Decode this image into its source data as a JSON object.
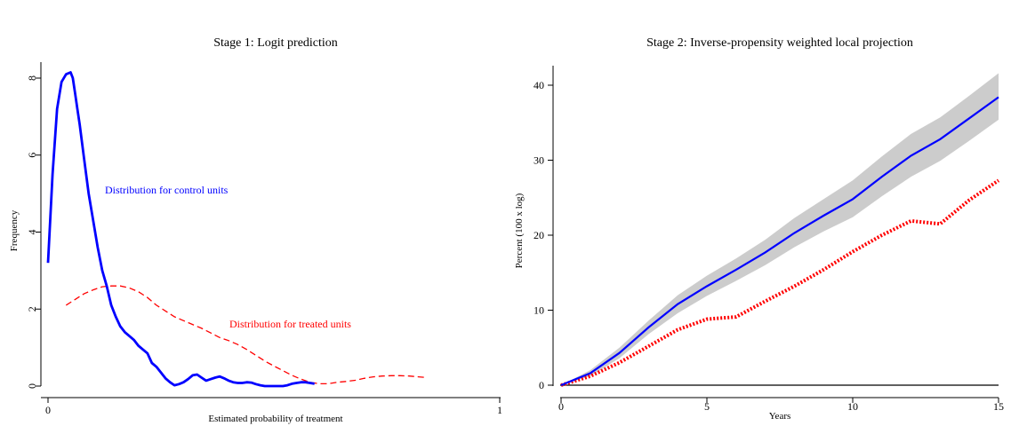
{
  "chart_data": [
    {
      "type": "line",
      "title": "Stage 1: Logit prediction",
      "xlabel": "Estimated probability of treatment",
      "ylabel": "Frequency",
      "xlim": [
        0,
        1
      ],
      "ylim": [
        0,
        8.2
      ],
      "xticks": [
        "0",
        "1"
      ],
      "yticks": [
        "0",
        "2",
        "4",
        "6",
        "8"
      ],
      "grid": false,
      "colors": {
        "control": "#0000ff",
        "treated": "#ff0000"
      },
      "annotations": [
        {
          "text": "Distribution for control units",
          "color": "#0000ff"
        },
        {
          "text": "Distribution for treated units",
          "color": "#ff0000"
        }
      ],
      "series": [
        {
          "style": "solid",
          "x": [
            0.0,
            0.01,
            0.02,
            0.03,
            0.04,
            0.05,
            0.055,
            0.06,
            0.065,
            0.07,
            0.08,
            0.09,
            0.1,
            0.11,
            0.12,
            0.13,
            0.14,
            0.15,
            0.16,
            0.17,
            0.18,
            0.19,
            0.2,
            0.21,
            0.22,
            0.23,
            0.24,
            0.25,
            0.26,
            0.27,
            0.28,
            0.29,
            0.3,
            0.31,
            0.32,
            0.33,
            0.34,
            0.35,
            0.36,
            0.37,
            0.38,
            0.39,
            0.4,
            0.41,
            0.42,
            0.43,
            0.44,
            0.45,
            0.46,
            0.47,
            0.48,
            0.49,
            0.5,
            0.51,
            0.52,
            0.53,
            0.54,
            0.55,
            0.56,
            0.57,
            0.58,
            0.59
          ],
          "y": [
            3.2,
            5.5,
            7.2,
            7.9,
            8.1,
            8.15,
            8.0,
            7.6,
            7.2,
            6.8,
            5.9,
            5.0,
            4.3,
            3.6,
            3.0,
            2.6,
            2.1,
            1.8,
            1.55,
            1.4,
            1.3,
            1.2,
            1.05,
            0.95,
            0.85,
            0.6,
            0.5,
            0.35,
            0.2,
            0.1,
            0.02,
            0.05,
            0.1,
            0.18,
            0.28,
            0.3,
            0.22,
            0.14,
            0.18,
            0.22,
            0.25,
            0.2,
            0.14,
            0.1,
            0.08,
            0.08,
            0.1,
            0.09,
            0.05,
            0.02,
            0.0,
            0.0,
            0.0,
            0.0,
            0.0,
            0.02,
            0.06,
            0.08,
            0.1,
            0.1,
            0.08,
            0.06
          ]
        },
        {
          "style": "dashed",
          "x": [
            0.04,
            0.06,
            0.08,
            0.1,
            0.12,
            0.14,
            0.16,
            0.18,
            0.2,
            0.22,
            0.24,
            0.26,
            0.28,
            0.3,
            0.32,
            0.34,
            0.36,
            0.38,
            0.4,
            0.42,
            0.44,
            0.46,
            0.48,
            0.5,
            0.52,
            0.54,
            0.56,
            0.58,
            0.6,
            0.62,
            0.64,
            0.66,
            0.68,
            0.7,
            0.72,
            0.74,
            0.76,
            0.78,
            0.8,
            0.82,
            0.84
          ],
          "y": [
            2.1,
            2.25,
            2.4,
            2.5,
            2.58,
            2.6,
            2.6,
            2.55,
            2.45,
            2.3,
            2.1,
            1.95,
            1.8,
            1.7,
            1.6,
            1.5,
            1.38,
            1.26,
            1.18,
            1.08,
            0.95,
            0.8,
            0.65,
            0.52,
            0.4,
            0.28,
            0.18,
            0.1,
            0.06,
            0.06,
            0.1,
            0.12,
            0.15,
            0.2,
            0.24,
            0.26,
            0.27,
            0.27,
            0.26,
            0.24,
            0.22
          ]
        }
      ]
    },
    {
      "type": "line",
      "title": "Stage 2: Inverse-propensity weighted local projection",
      "xlabel": "Years",
      "ylabel": "Percent (100 x log)",
      "xlim": [
        0,
        15
      ],
      "ylim": [
        0,
        42
      ],
      "xticks": [
        "0",
        "5",
        "10",
        "15"
      ],
      "yticks": [
        "0",
        "10",
        "20",
        "30",
        "40"
      ],
      "grid": false,
      "colors": {
        "estimate": "#0000ff",
        "band": "#cccccc",
        "comparison": "#ff0000"
      },
      "series": [
        {
          "style": "solid",
          "x": [
            0,
            1,
            2,
            3,
            4,
            5,
            6,
            7,
            8,
            9,
            10,
            11,
            12,
            13,
            14,
            15
          ],
          "y": [
            0,
            1.6,
            4.3,
            7.7,
            10.8,
            13.2,
            15.4,
            17.7,
            20.3,
            22.6,
            24.8,
            27.8,
            30.6,
            32.8,
            35.6,
            38.4
          ],
          "lower": [
            0,
            1.2,
            3.6,
            6.8,
            9.6,
            11.9,
            13.9,
            16.0,
            18.4,
            20.5,
            22.4,
            25.2,
            27.8,
            29.9,
            32.6,
            35.4
          ],
          "upper": [
            0,
            2.0,
            5.0,
            8.6,
            12.0,
            14.6,
            16.9,
            19.4,
            22.3,
            24.8,
            27.3,
            30.5,
            33.5,
            35.7,
            38.6,
            41.6
          ]
        },
        {
          "style": "dotted",
          "x": [
            0,
            1,
            2,
            3,
            4,
            5,
            6,
            7,
            8,
            9,
            10,
            11,
            12,
            13,
            14,
            15
          ],
          "y": [
            0,
            1.2,
            3.0,
            5.2,
            7.4,
            8.8,
            9.1,
            11.2,
            13.2,
            15.4,
            17.8,
            20.0,
            21.9,
            21.5,
            24.7,
            27.3
          ]
        }
      ]
    }
  ]
}
